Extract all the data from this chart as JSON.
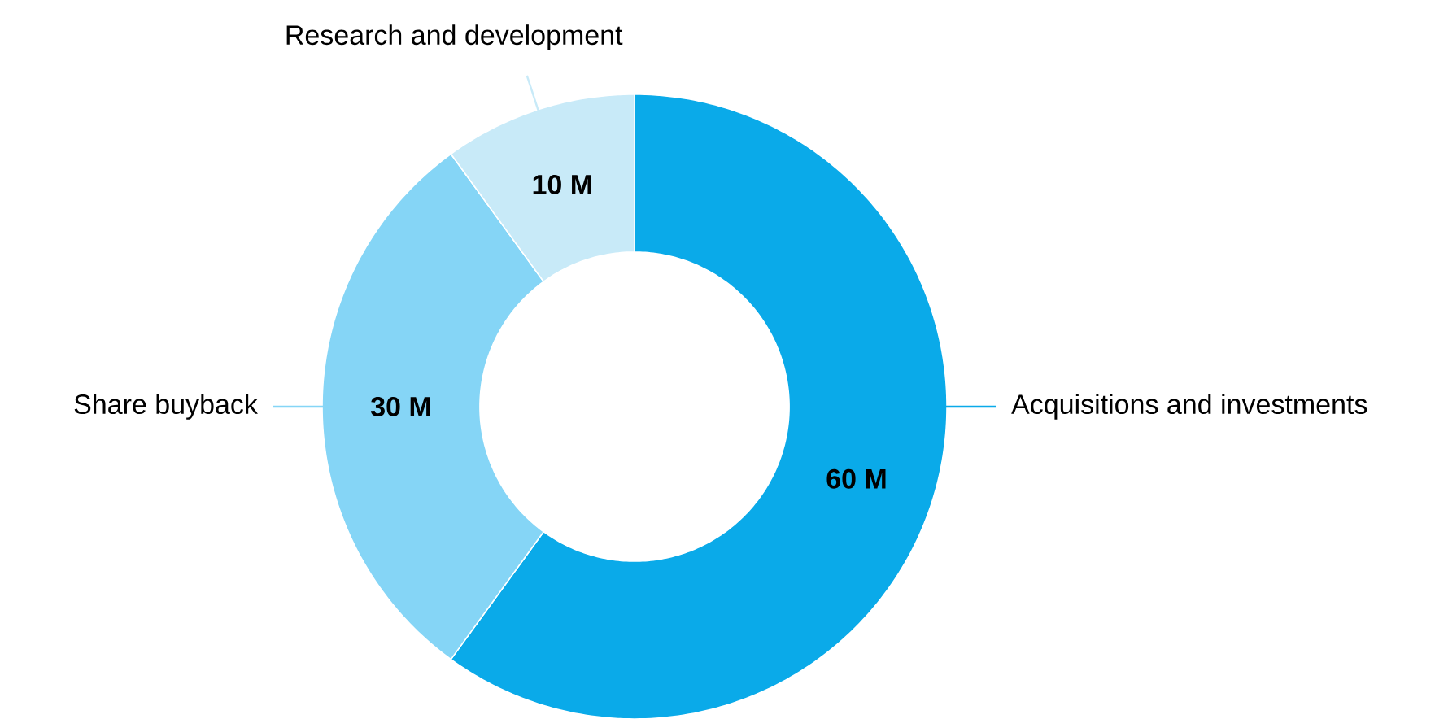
{
  "chart_data": {
    "type": "donut",
    "categories": [
      "Acquisitions and investments",
      "Share buyback",
      "Research and development"
    ],
    "values": [
      60,
      30,
      10
    ],
    "colors": [
      "#0aaae9",
      "#85d5f6",
      "#c8eaf8"
    ],
    "value_labels": [
      "60 M",
      "30 M",
      "10 M"
    ]
  }
}
